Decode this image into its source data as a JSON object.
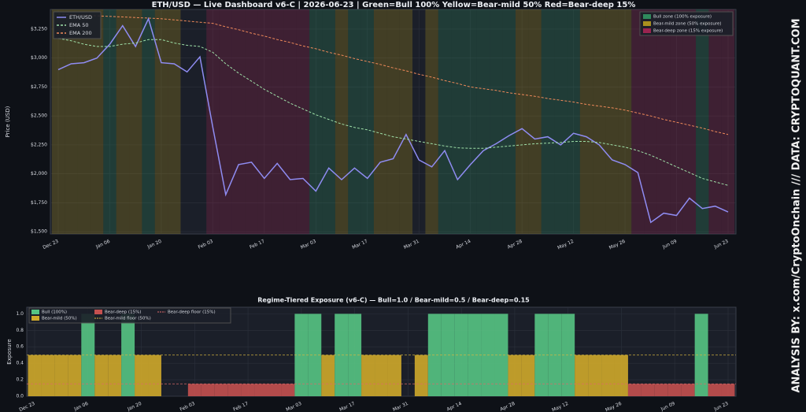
{
  "credit": "ANALYSIS BY: x.com/CryptoOnchain   ///   DATA: CRYPTOQUANT.COM",
  "chart_data": [
    {
      "type": "line",
      "title": "ETH/USD — Live Dashboard v6-C  |  2026-06-23  |  Green=Bull 100%  Yellow=Bear-mild 50%  Red=Bear-deep 15%",
      "y_label": "Price (USD)",
      "x": [
        "Dec 23",
        "Dec 26",
        "Dec 30",
        "Jan 02",
        "Jan 06",
        "Jan 09",
        "Jan 13",
        "Jan 16",
        "Jan 20",
        "Jan 23",
        "Jan 27",
        "Jan 30",
        "Feb 03",
        "Feb 06",
        "Feb 10",
        "Feb 13",
        "Feb 17",
        "Feb 20",
        "Feb 24",
        "Feb 27",
        "Mar 03",
        "Mar 06",
        "Mar 10",
        "Mar 13",
        "Mar 17",
        "Mar 20",
        "Mar 24",
        "Mar 27",
        "Mar 31",
        "Apr 03",
        "Apr 07",
        "Apr 10",
        "Apr 14",
        "Apr 17",
        "Apr 21",
        "Apr 24",
        "Apr 28",
        "May 01",
        "May 05",
        "May 08",
        "May 12",
        "May 15",
        "May 19",
        "May 22",
        "May 26",
        "May 29",
        "Jun 02",
        "Jun 05",
        "Jun 09",
        "Jun 12",
        "Jun 16",
        "Jun 19",
        "Jun 23"
      ],
      "xticks": [
        "Dec 23",
        "Jan 06",
        "Jan 20",
        "Feb 03",
        "Feb 17",
        "Mar 03",
        "Mar 17",
        "Mar 31",
        "Apr 14",
        "Apr 28",
        "May 12",
        "May 26",
        "Jun 09",
        "Jun 23"
      ],
      "ylim": [
        1480,
        3420
      ],
      "yticks": [
        {
          "value": 1500,
          "label": "$1,500"
        },
        {
          "value": 1750,
          "label": "$1,750"
        },
        {
          "value": 2000,
          "label": "$2,000"
        },
        {
          "value": 2250,
          "label": "$2,250"
        },
        {
          "value": 2500,
          "label": "$2,500"
        },
        {
          "value": 2750,
          "label": "$2,750"
        },
        {
          "value": 3000,
          "label": "$3,000"
        },
        {
          "value": 3250,
          "label": "$3,250"
        }
      ],
      "grid": true,
      "series": [
        {
          "name": "ETH/USD",
          "color": "#8f8cf2",
          "dash": false,
          "values": [
            2900,
            2950,
            2960,
            3000,
            3120,
            3280,
            3100,
            3340,
            2960,
            2950,
            2880,
            3010,
            2400,
            1820,
            2080,
            2100,
            1960,
            2090,
            1950,
            1960,
            1850,
            2050,
            1950,
            2050,
            1960,
            2100,
            2130,
            2340,
            2120,
            2060,
            2200,
            1950,
            2080,
            2200,
            2260,
            2330,
            2390,
            2300,
            2320,
            2250,
            2350,
            2320,
            2250,
            2120,
            2080,
            2010,
            1580,
            1660,
            1640,
            1790,
            1700,
            1720,
            1670
          ]
        },
        {
          "name": "EMA 50",
          "color": "#9fe0a8",
          "dash": true,
          "values": [
            3170,
            3150,
            3120,
            3100,
            3100,
            3120,
            3130,
            3160,
            3160,
            3130,
            3110,
            3100,
            3050,
            2950,
            2870,
            2800,
            2730,
            2670,
            2610,
            2560,
            2510,
            2470,
            2430,
            2400,
            2380,
            2350,
            2320,
            2300,
            2280,
            2260,
            2240,
            2225,
            2220,
            2220,
            2230,
            2240,
            2250,
            2260,
            2265,
            2270,
            2280,
            2280,
            2270,
            2250,
            2230,
            2200,
            2160,
            2110,
            2060,
            2010,
            1960,
            1930,
            1900
          ]
        },
        {
          "name": "EMA 200",
          "color": "#f08a5a",
          "dash": true,
          "values": [
            3380,
            3375,
            3370,
            3365,
            3360,
            3355,
            3350,
            3345,
            3340,
            3330,
            3320,
            3310,
            3300,
            3270,
            3245,
            3215,
            3190,
            3160,
            3135,
            3105,
            3080,
            3050,
            3025,
            2995,
            2970,
            2945,
            2915,
            2890,
            2860,
            2835,
            2805,
            2780,
            2750,
            2735,
            2720,
            2700,
            2685,
            2670,
            2650,
            2635,
            2620,
            2600,
            2585,
            2570,
            2550,
            2525,
            2500,
            2470,
            2445,
            2420,
            2395,
            2365,
            2340
          ]
        }
      ],
      "zones": [
        {
          "value": 1,
          "name": "Bull zone (100% exposure)",
          "color": "#2f8a5c"
        },
        {
          "value": 0.5,
          "name": "Bear-mild zone (50% exposure)",
          "color": "#a8901e"
        },
        {
          "value": 0.15,
          "name": "Bear-deep zone (15% exposure)",
          "color": "#9a2450"
        }
      ]
    },
    {
      "type": "bar",
      "title": "Regime-Tiered Exposure (v6-C) — Bull=1.0 / Bear-mild=0.5 / Bear-deep=0.15",
      "y_label": "Exposure",
      "x": [
        "Dec 23",
        "Dec 26",
        "Dec 30",
        "Jan 02",
        "Jan 06",
        "Jan 09",
        "Jan 13",
        "Jan 16",
        "Jan 20",
        "Jan 23",
        "Jan 27",
        "Jan 30",
        "Feb 03",
        "Feb 06",
        "Feb 10",
        "Feb 13",
        "Feb 17",
        "Feb 20",
        "Feb 24",
        "Feb 27",
        "Mar 03",
        "Mar 06",
        "Mar 10",
        "Mar 13",
        "Mar 17",
        "Mar 20",
        "Mar 24",
        "Mar 27",
        "Mar 31",
        "Apr 03",
        "Apr 07",
        "Apr 10",
        "Apr 14",
        "Apr 17",
        "Apr 21",
        "Apr 24",
        "Apr 28",
        "May 01",
        "May 05",
        "May 08",
        "May 12",
        "May 15",
        "May 19",
        "May 22",
        "May 26",
        "May 29",
        "Jun 02",
        "Jun 05",
        "Jun 09",
        "Jun 12",
        "Jun 16",
        "Jun 19",
        "Jun 23"
      ],
      "xticks": [
        "Dec 23",
        "Jan 06",
        "Jan 20",
        "Feb 03",
        "Feb 17",
        "Mar 03",
        "Mar 17",
        "Mar 31",
        "Apr 14",
        "Apr 28",
        "May 12",
        "May 26",
        "Jun 09",
        "Jun 23"
      ],
      "ylim": [
        0,
        1.08
      ],
      "yticks": [
        {
          "value": 0,
          "label": "0.0"
        },
        0.2,
        0.4,
        0.6,
        0.8,
        {
          "value": 1,
          "label": "1.0"
        }
      ],
      "grid": true,
      "values": [
        0.5,
        0.5,
        0.5,
        0.5,
        1,
        0.5,
        0.5,
        1,
        0.5,
        0.5,
        0,
        0,
        0.15,
        0.15,
        0.15,
        0.15,
        0.15,
        0.15,
        0.15,
        0.15,
        1,
        1,
        0.5,
        1,
        1,
        0.5,
        0.5,
        0.5,
        0,
        0.5,
        1,
        1,
        1,
        1,
        1,
        1,
        0.5,
        0.5,
        1,
        1,
        1,
        0.5,
        0.5,
        0.5,
        0.5,
        0.15,
        0.15,
        0.15,
        0.15,
        0.15,
        1,
        0.15,
        0.15
      ],
      "levels": [
        {
          "value": 1,
          "name": "Bull (100%)",
          "color": "#56c483"
        },
        {
          "value": 0.5,
          "name": "Bear-mild (50%)",
          "color": "#cfa92a"
        },
        {
          "value": 0.15,
          "name": "Bear-deep (15%)",
          "color": "#c4504f"
        }
      ],
      "reference_lines": [
        {
          "value": 0.15,
          "name": "Bear-deep floor (15%)",
          "color": "#e06a6a"
        },
        {
          "value": 0.5,
          "name": "Bear-mild floor (50%)",
          "color": "#d8b840"
        }
      ]
    }
  ]
}
